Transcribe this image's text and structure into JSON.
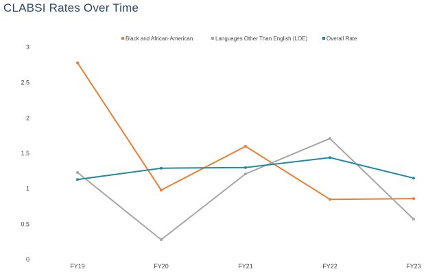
{
  "chart_data": {
    "type": "line",
    "title": "CLABSI Rates Over Time",
    "xlabel": "",
    "ylabel": "",
    "categories": [
      "FY19",
      "FY20",
      "FY21",
      "FY22",
      "FY23"
    ],
    "ylim": [
      0,
      3
    ],
    "yticks": [
      "0",
      "0.5",
      "1",
      "1.5",
      "2",
      "2.5",
      "3"
    ],
    "grid": false,
    "legend_position": "top",
    "series": [
      {
        "name": "Black and African-American",
        "color": "#ed7d31",
        "values": [
          2.78,
          0.98,
          1.6,
          0.85,
          0.86
        ]
      },
      {
        "name": "Languages Other Than English (LOE)",
        "color": "#a5a5a5",
        "values": [
          1.23,
          0.28,
          1.21,
          1.71,
          0.57
        ]
      },
      {
        "name": "Overall Rate",
        "color": "#1f8ba3",
        "values": [
          1.13,
          1.29,
          1.3,
          1.44,
          1.15
        ]
      }
    ]
  }
}
